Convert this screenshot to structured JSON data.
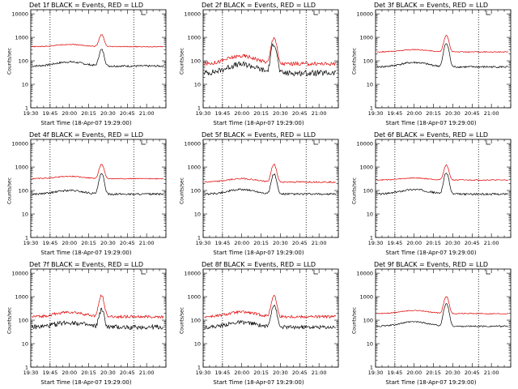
{
  "figure": {
    "x_title": "Start Time (18-Apr-07 19:29:00)",
    "y_label": "Counts/sec"
  },
  "chart_data": [
    {
      "type": "line",
      "title": "Det 1f BLACK = Events, RED = LLD",
      "xlabel": "Start Time (18-Apr-07 19:29:00)",
      "ylabel": "Counts/sec",
      "yscale": "log",
      "ylim": [
        1,
        15000
      ],
      "xlim": [
        "19:30",
        "21:15"
      ],
      "xticks": [
        "19:30",
        "19:45",
        "20:00",
        "20:15",
        "20:30",
        "20:45",
        "21:00"
      ],
      "yticks": [
        "1",
        "10",
        "100",
        "1000",
        "10000"
      ],
      "dotted_lines": [
        "19:45",
        "20:50"
      ],
      "series": [
        {
          "name": "Events",
          "color": "#000000",
          "baseline": 60,
          "bump": 90,
          "peak": 300,
          "noise": 0.04
        },
        {
          "name": "LLD",
          "color": "#e00000",
          "baseline": 400,
          "bump": 500,
          "peak": 1300,
          "noise": 0.02
        }
      ]
    },
    {
      "type": "line",
      "title": "Det 2f BLACK = Events, RED = LLD",
      "xlabel": "Start Time (18-Apr-07 19:29:00)",
      "ylabel": "Counts/sec",
      "yscale": "log",
      "ylim": [
        1,
        15000
      ],
      "xlim": [
        "19:30",
        "21:15"
      ],
      "xticks": [
        "19:30",
        "19:45",
        "20:00",
        "20:15",
        "20:30",
        "20:45",
        "21:00"
      ],
      "yticks": [
        "1",
        "10",
        "100",
        "1000",
        "10000"
      ],
      "dotted_lines": [
        "19:45",
        "20:50"
      ],
      "series": [
        {
          "name": "Events",
          "color": "#000000",
          "baseline": 30,
          "bump": 70,
          "peak": 550,
          "noise": 0.12
        },
        {
          "name": "LLD",
          "color": "#e00000",
          "baseline": 75,
          "bump": 160,
          "peak": 1000,
          "noise": 0.08
        }
      ]
    },
    {
      "type": "line",
      "title": "Det 3f BLACK = Events, RED = LLD",
      "xlabel": "Start Time (18-Apr-07 19:29:00)",
      "ylabel": "Counts/sec",
      "yscale": "log",
      "ylim": [
        1,
        15000
      ],
      "xlim": [
        "19:30",
        "21:15"
      ],
      "xticks": [
        "19:30",
        "19:45",
        "20:00",
        "20:15",
        "20:30",
        "20:45",
        "21:00"
      ],
      "yticks": [
        "1",
        "10",
        "100",
        "1000",
        "10000"
      ],
      "dotted_lines": [
        "19:45",
        "20:50"
      ],
      "series": [
        {
          "name": "Events",
          "color": "#000000",
          "baseline": 55,
          "bump": 85,
          "peak": 550,
          "noise": 0.04
        },
        {
          "name": "LLD",
          "color": "#e00000",
          "baseline": 240,
          "bump": 300,
          "peak": 1200,
          "noise": 0.02
        }
      ]
    },
    {
      "type": "line",
      "title": "Det 4f BLACK = Events, RED = LLD",
      "xlabel": "Start Time (18-Apr-07 19:29:00)",
      "ylabel": "Counts/sec",
      "yscale": "log",
      "ylim": [
        1,
        15000
      ],
      "xlim": [
        "19:30",
        "21:15"
      ],
      "xticks": [
        "19:30",
        "19:45",
        "20:00",
        "20:15",
        "20:30",
        "20:45",
        "21:00"
      ],
      "yticks": [
        "1",
        "10",
        "100",
        "1000",
        "10000"
      ],
      "dotted_lines": [
        "19:45",
        "20:50"
      ],
      "series": [
        {
          "name": "Events",
          "color": "#000000",
          "baseline": 70,
          "bump": 100,
          "peak": 500,
          "noise": 0.04
        },
        {
          "name": "LLD",
          "color": "#e00000",
          "baseline": 320,
          "bump": 400,
          "peak": 1300,
          "noise": 0.02
        }
      ]
    },
    {
      "type": "line",
      "title": "Det 5f BLACK = Events, RED = LLD",
      "xlabel": "Start Time (18-Apr-07 19:29:00)",
      "ylabel": "Counts/sec",
      "yscale": "log",
      "ylim": [
        1,
        15000
      ],
      "xlim": [
        "19:30",
        "21:15"
      ],
      "xticks": [
        "19:30",
        "19:45",
        "20:00",
        "20:15",
        "20:30",
        "20:45",
        "21:00"
      ],
      "yticks": [
        "1",
        "10",
        "100",
        "1000",
        "10000"
      ],
      "dotted_lines": [
        "19:45",
        "20:50"
      ],
      "series": [
        {
          "name": "Events",
          "color": "#000000",
          "baseline": 70,
          "bump": 110,
          "peak": 500,
          "noise": 0.04
        },
        {
          "name": "LLD",
          "color": "#e00000",
          "baseline": 230,
          "bump": 320,
          "peak": 1300,
          "noise": 0.03
        }
      ]
    },
    {
      "type": "line",
      "title": "Det 6f BLACK = Events, RED = LLD",
      "xlabel": "Start Time (18-Apr-07 19:29:00)",
      "ylabel": "Counts/sec",
      "yscale": "log",
      "ylim": [
        1,
        15000
      ],
      "xlim": [
        "19:30",
        "21:15"
      ],
      "xticks": [
        "19:30",
        "19:45",
        "20:00",
        "20:15",
        "20:30",
        "20:45",
        "21:00"
      ],
      "yticks": [
        "1",
        "10",
        "100",
        "1000",
        "10000"
      ],
      "dotted_lines": [
        "19:45",
        "20:50"
      ],
      "series": [
        {
          "name": "Events",
          "color": "#000000",
          "baseline": 70,
          "bump": 110,
          "peak": 550,
          "noise": 0.04
        },
        {
          "name": "LLD",
          "color": "#e00000",
          "baseline": 280,
          "bump": 340,
          "peak": 1200,
          "noise": 0.02
        }
      ]
    },
    {
      "type": "line",
      "title": "Det 7f BLACK = Events, RED = LLD",
      "xlabel": "Start Time (18-Apr-07 19:29:00)",
      "ylabel": "Counts/sec",
      "yscale": "log",
      "ylim": [
        1,
        15000
      ],
      "xlim": [
        "19:30",
        "21:15"
      ],
      "xticks": [
        "19:30",
        "19:45",
        "20:00",
        "20:15",
        "20:30",
        "20:45",
        "21:00"
      ],
      "yticks": [
        "1",
        "10",
        "100",
        "1000",
        "10000"
      ],
      "dotted_lines": [
        "19:45",
        "20:50"
      ],
      "series": [
        {
          "name": "Events",
          "color": "#000000",
          "baseline": 50,
          "bump": 80,
          "peak": 270,
          "noise": 0.1
        },
        {
          "name": "LLD",
          "color": "#e00000",
          "baseline": 140,
          "bump": 220,
          "peak": 1100,
          "noise": 0.06
        }
      ]
    },
    {
      "type": "line",
      "title": "Det 8f BLACK = Events, RED = LLD",
      "xlabel": "Start Time (18-Apr-07 19:29:00)",
      "ylabel": "Counts/sec",
      "yscale": "log",
      "ylim": [
        1,
        15000
      ],
      "xlim": [
        "19:30",
        "21:15"
      ],
      "xticks": [
        "19:30",
        "19:45",
        "20:00",
        "20:15",
        "20:30",
        "20:45",
        "21:00"
      ],
      "yticks": [
        "1",
        "10",
        "100",
        "1000",
        "10000"
      ],
      "dotted_lines": [
        "19:45",
        "20:50"
      ],
      "series": [
        {
          "name": "Events",
          "color": "#000000",
          "baseline": 50,
          "bump": 80,
          "peak": 450,
          "noise": 0.08
        },
        {
          "name": "LLD",
          "color": "#e00000",
          "baseline": 140,
          "bump": 220,
          "peak": 1100,
          "noise": 0.06
        }
      ]
    },
    {
      "type": "line",
      "title": "Det 9f BLACK = Events, RED = LLD",
      "xlabel": "Start Time (18-Apr-07 19:29:00)",
      "ylabel": "Counts/sec",
      "yscale": "log",
      "ylim": [
        1,
        15000
      ],
      "xlim": [
        "19:30",
        "21:15"
      ],
      "xticks": [
        "19:30",
        "19:45",
        "20:00",
        "20:15",
        "20:30",
        "20:45",
        "21:00"
      ],
      "yticks": [
        "1",
        "10",
        "100",
        "1000",
        "10000"
      ],
      "dotted_lines": [
        "19:45",
        "20:50"
      ],
      "series": [
        {
          "name": "Events",
          "color": "#000000",
          "baseline": 55,
          "bump": 85,
          "peak": 500,
          "noise": 0.03
        },
        {
          "name": "LLD",
          "color": "#e00000",
          "baseline": 190,
          "bump": 260,
          "peak": 1000,
          "noise": 0.02
        }
      ]
    }
  ]
}
